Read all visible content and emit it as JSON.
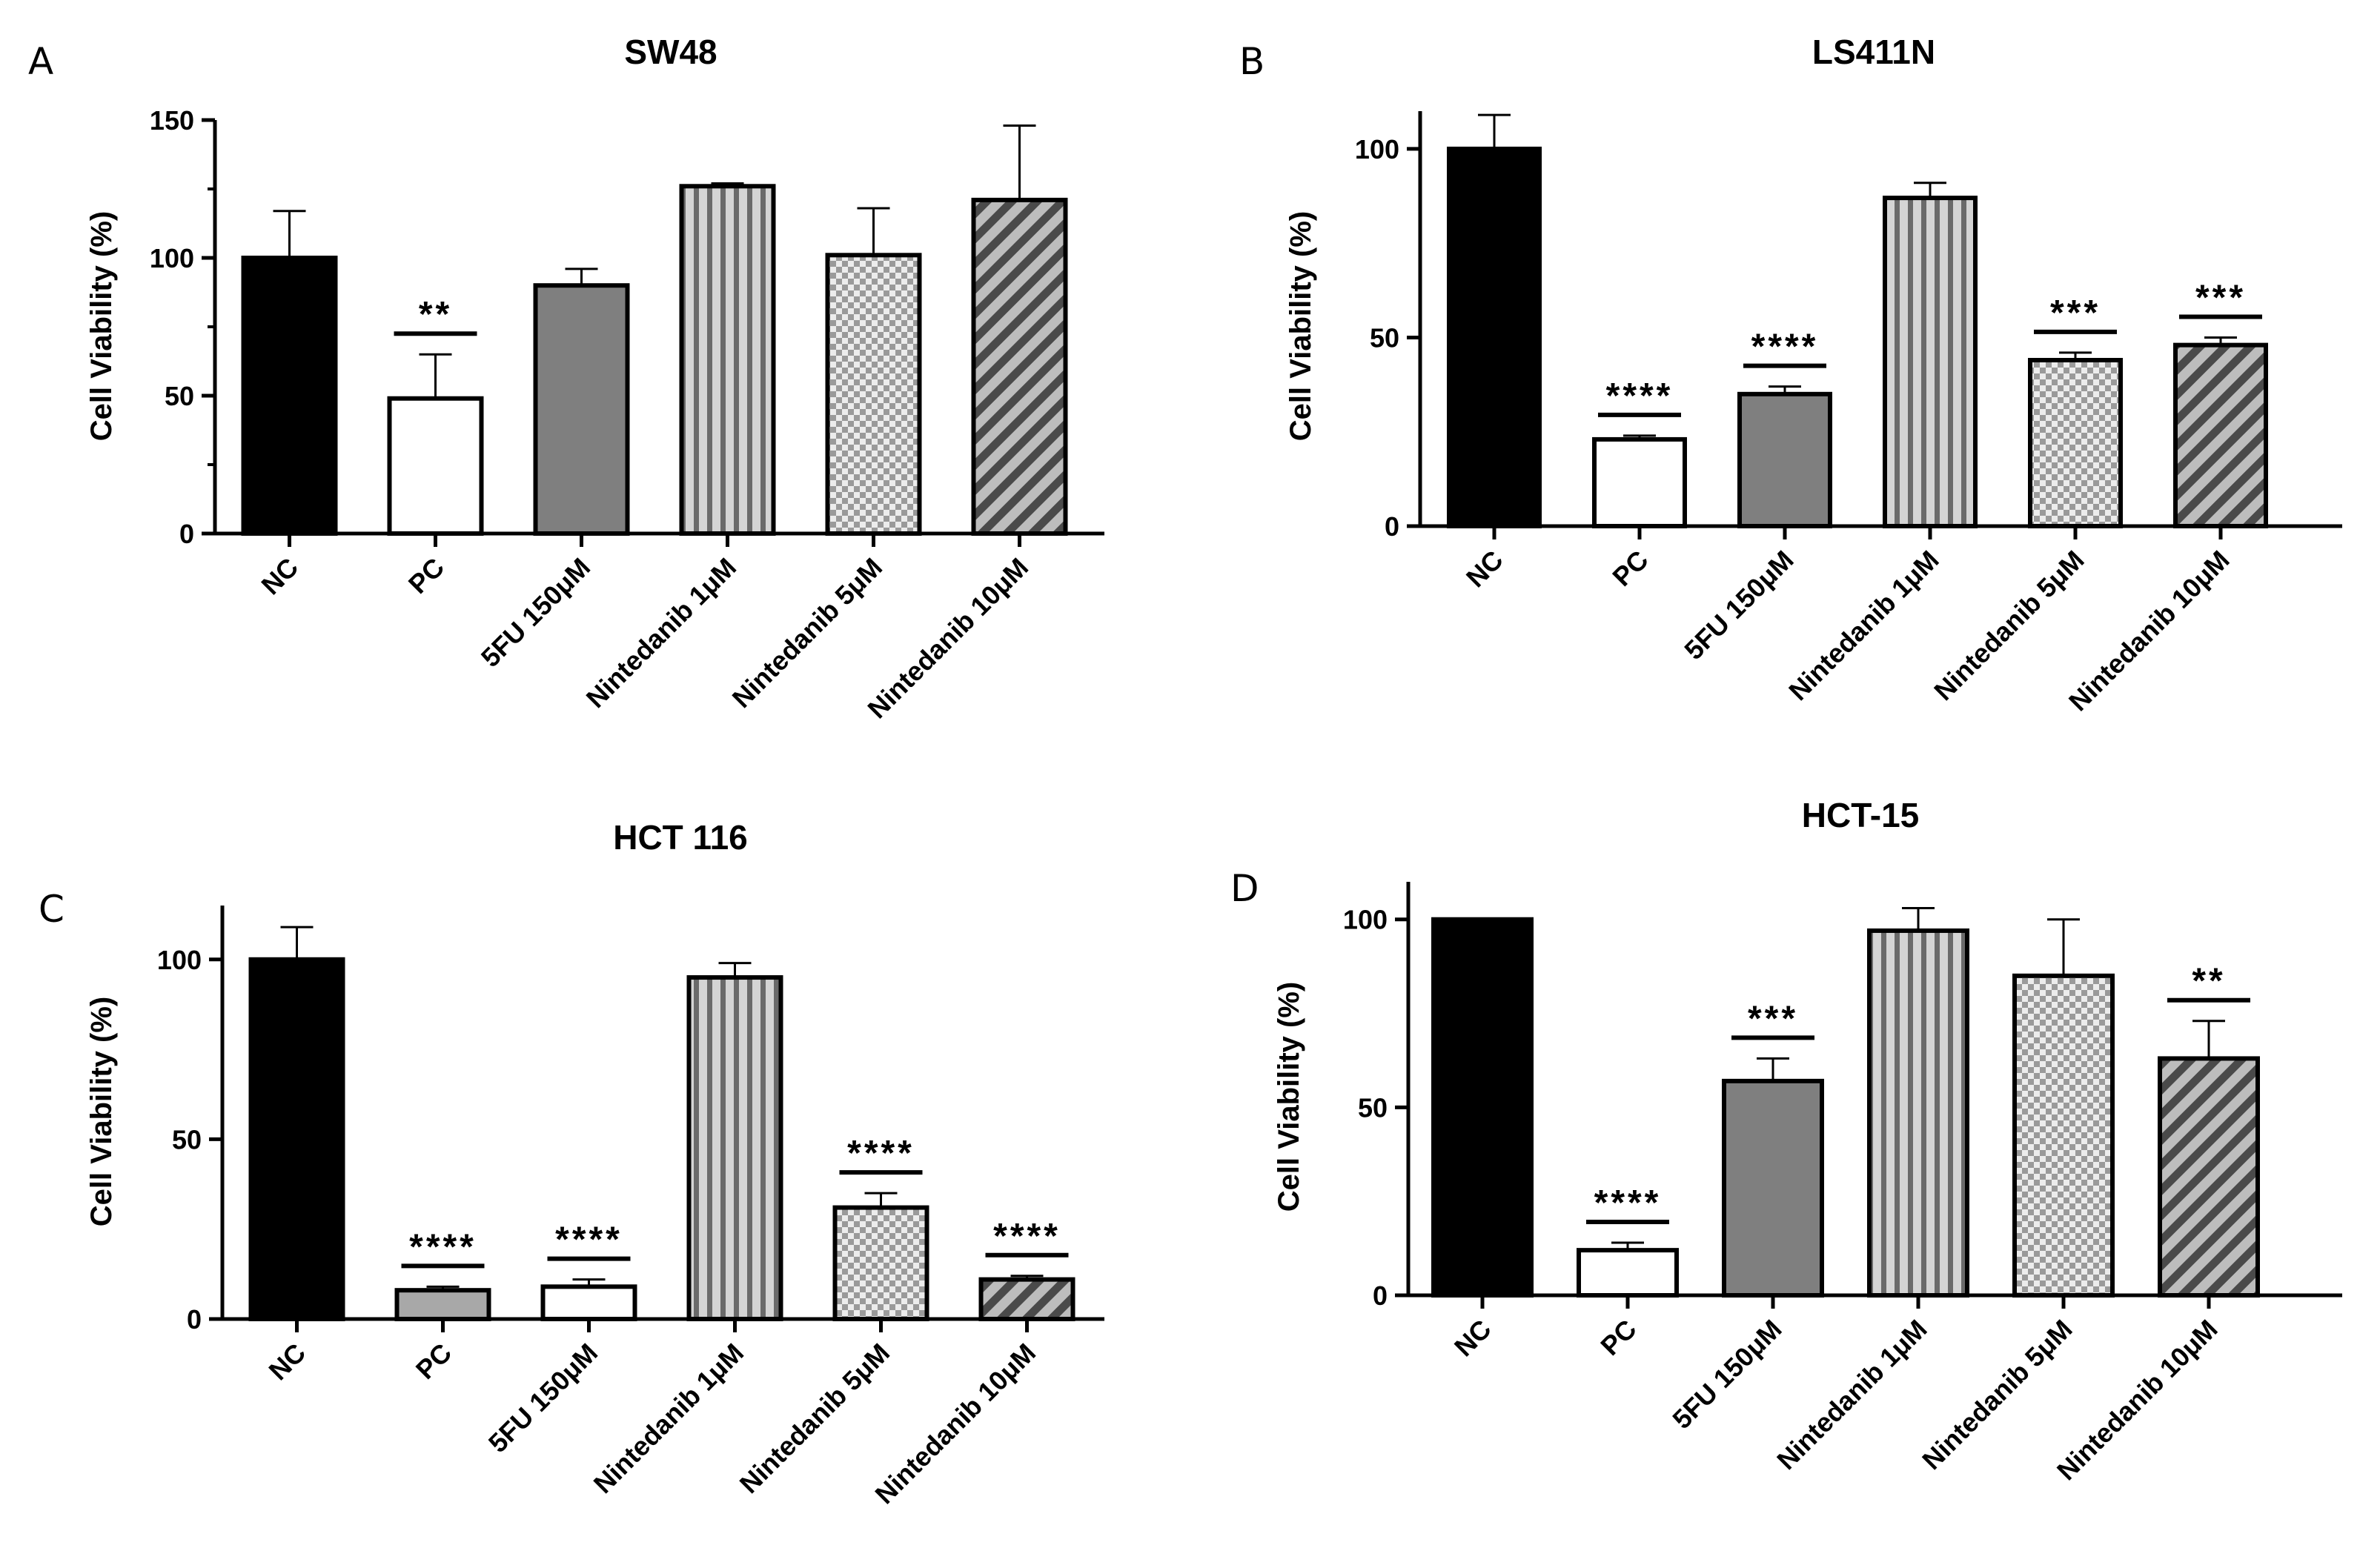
{
  "figure": {
    "colors": {
      "nc": "#000000",
      "pc_white": "#ffffff",
      "pc_gray": "#a8a8a8",
      "fu_gray": "#7f7f7f",
      "stripe_light": "#d4d4d4",
      "stripe_dark": "#6a6a6a",
      "checker_light": "#ececec",
      "checker_dark": "#9a9a9a",
      "diag_light": "#bdbdbd",
      "diag_dark": "#4a4a4a"
    }
  },
  "chart_data": [
    {
      "panel": "A",
      "type": "bar",
      "title": "SW48",
      "ylabel": "Cell Viability (%)",
      "xlabel": "",
      "ylim": [
        0,
        150
      ],
      "yticks": [
        0,
        50,
        100,
        150
      ],
      "categories": [
        "NC",
        "PC",
        "5FU 150μM",
        "Nintedanib 1μM",
        "Nintedanib 5μM",
        "Nintedanib 10μM"
      ],
      "values": [
        100,
        49,
        90,
        126,
        101,
        121
      ],
      "errors": [
        17,
        16,
        6,
        1,
        17,
        27
      ],
      "significance": [
        "",
        "**",
        "",
        "",
        "",
        ""
      ],
      "fills": [
        "nc",
        "pc_white",
        "fu_gray",
        "stripe",
        "checker",
        "diag"
      ]
    },
    {
      "panel": "B",
      "type": "bar",
      "title": "LS411N",
      "ylabel": "Cell Viability (%)",
      "xlabel": "",
      "ylim": [
        0,
        110
      ],
      "yticks": [
        0,
        50,
        100
      ],
      "categories": [
        "NC",
        "PC",
        "5FU 150μM",
        "Nintedanib 1μM",
        "Nintedanib 5μM",
        "Nintedanib 10μM"
      ],
      "values": [
        100,
        23,
        35,
        87,
        44,
        48
      ],
      "errors": [
        9,
        1,
        2,
        4,
        2,
        2
      ],
      "significance": [
        "",
        "****",
        "****",
        "",
        "***",
        "***"
      ],
      "fills": [
        "nc",
        "pc_white",
        "fu_gray",
        "stripe",
        "checker",
        "diag"
      ]
    },
    {
      "panel": "C",
      "type": "bar",
      "title": "HCT 116",
      "ylabel": "Cell Viability (%)",
      "xlabel": "",
      "ylim": [
        0,
        115
      ],
      "yticks": [
        0,
        50,
        100
      ],
      "categories": [
        "NC",
        "PC",
        "5FU 150μM",
        "Nintedanib 1μM",
        "Nintedanib 5μM",
        "Nintedanib 10μM"
      ],
      "values": [
        100,
        8,
        9,
        95,
        31,
        11
      ],
      "errors": [
        9,
        1,
        2,
        4,
        4,
        1
      ],
      "significance": [
        "",
        "****",
        "****",
        "",
        "****",
        "****"
      ],
      "fills": [
        "nc",
        "pc_gray",
        "pc_white",
        "stripe",
        "checker",
        "diag"
      ]
    },
    {
      "panel": "D",
      "type": "bar",
      "title": "HCT-15",
      "ylabel": "Cell Viability (%)",
      "xlabel": "",
      "ylim": [
        0,
        110
      ],
      "yticks": [
        0,
        50,
        100
      ],
      "categories": [
        "NC",
        "PC",
        "5FU 150μM",
        "Nintedanib 1μM",
        "Nintedanib 5μM",
        "Nintedanib 10μM"
      ],
      "values": [
        100,
        12,
        57,
        97,
        85,
        63
      ],
      "errors": [
        0,
        2,
        6,
        6,
        15,
        10
      ],
      "significance": [
        "",
        "****",
        "***",
        "",
        "",
        "**"
      ],
      "fills": [
        "nc",
        "pc_white",
        "fu_gray",
        "stripe",
        "checker",
        "diag"
      ]
    }
  ]
}
